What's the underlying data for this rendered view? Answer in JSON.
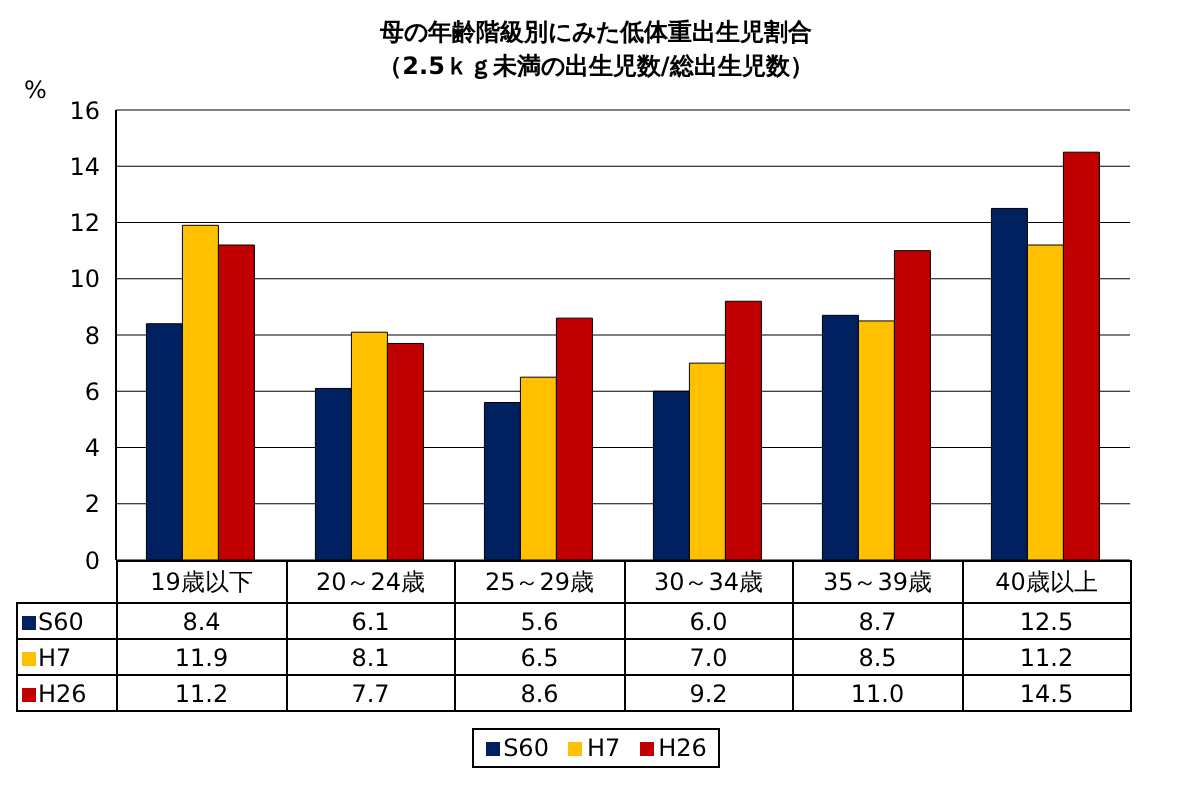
{
  "chart_data": {
    "type": "bar",
    "title": "母の年齢階級別にみた低体重出生児割合",
    "subtitle": "（2.5ｋｇ未満の出生児数/総出生児数）",
    "ylabel": "%",
    "categories": [
      "19歳以下",
      "20～24歳",
      "25～29歳",
      "30～34歳",
      "35～39歳",
      "40歳以上"
    ],
    "series": [
      {
        "name": "S60",
        "color": "#002060",
        "values": [
          8.4,
          6.1,
          5.6,
          6.0,
          8.7,
          12.5
        ],
        "value_labels": [
          "8.4",
          "6.1",
          "5.6",
          "6.0",
          "8.7",
          "12.5"
        ]
      },
      {
        "name": "H7",
        "color": "#ffc000",
        "values": [
          11.9,
          8.1,
          6.5,
          7.0,
          8.5,
          11.2
        ],
        "value_labels": [
          "11.9",
          "8.1",
          "6.5",
          "7.0",
          "8.5",
          "11.2"
        ]
      },
      {
        "name": "H26",
        "color": "#c00000",
        "values": [
          11.2,
          7.7,
          8.6,
          9.2,
          11.0,
          14.5
        ],
        "value_labels": [
          "11.2",
          "7.7",
          "8.6",
          "9.2",
          "11.0",
          "14.5"
        ]
      }
    ],
    "ylim": [
      0,
      16
    ],
    "yticks": [
      0,
      2,
      4,
      6,
      8,
      10,
      12,
      14,
      16
    ],
    "grid": "y",
    "legend": "bottom"
  }
}
